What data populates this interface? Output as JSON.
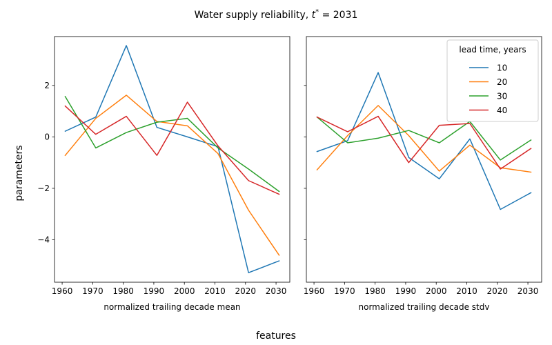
{
  "figure": {
    "title": "Water supply reliability, t* = 2031",
    "title_parts": {
      "prefix": "Water supply reliability, ",
      "var": "t",
      "sup": "*",
      "suffix": " = 2031"
    },
    "supxlabel": "features",
    "supylabel": "parameters"
  },
  "chart_data": [
    {
      "type": "line",
      "xlabel": "normalized trailing decade mean",
      "ylabel": "parameters",
      "x": [
        1961,
        1971,
        1981,
        1991,
        2001,
        2011,
        2021,
        2031
      ],
      "xticks": [
        1960,
        1970,
        1980,
        1990,
        2000,
        2010,
        2020,
        2030
      ],
      "yticks": [
        2,
        0,
        -2,
        -4
      ],
      "xlim": [
        1957.5,
        2034.5
      ],
      "ylim": [
        -5.65,
        3.9
      ],
      "grid": false,
      "series": [
        {
          "name": "10",
          "color": "#1f77b4",
          "values": [
            0.22,
            0.77,
            3.55,
            0.37,
            0.0,
            -0.38,
            -5.28,
            -4.82
          ]
        },
        {
          "name": "20",
          "color": "#ff7f0e",
          "values": [
            -0.72,
            0.72,
            1.62,
            0.6,
            0.43,
            -0.65,
            -2.85,
            -4.6
          ]
        },
        {
          "name": "30",
          "color": "#2ca02c",
          "values": [
            1.57,
            -0.43,
            0.17,
            0.57,
            0.72,
            -0.43,
            -1.25,
            -2.12
          ]
        },
        {
          "name": "40",
          "color": "#d62728",
          "values": [
            1.2,
            0.1,
            0.8,
            -0.72,
            1.35,
            -0.35,
            -1.7,
            -2.23
          ]
        }
      ]
    },
    {
      "type": "line",
      "xlabel": "normalized trailing decade stdv",
      "x": [
        1961,
        1971,
        1981,
        1991,
        2001,
        2011,
        2021,
        2031
      ],
      "xticks": [
        1960,
        1970,
        1980,
        1990,
        2000,
        2010,
        2020,
        2030
      ],
      "xlim": [
        1957.5,
        2034.5
      ],
      "ylim": [
        -5.65,
        3.9
      ],
      "grid": false,
      "legend": {
        "title": "lead time, years",
        "placement": "top-right"
      },
      "series": [
        {
          "name": "10",
          "color": "#1f77b4",
          "values": [
            -0.57,
            -0.15,
            2.5,
            -0.8,
            -1.63,
            -0.08,
            -2.82,
            -2.17
          ]
        },
        {
          "name": "20",
          "color": "#ff7f0e",
          "values": [
            -1.28,
            0.05,
            1.22,
            0.05,
            -1.33,
            -0.32,
            -1.2,
            -1.37
          ]
        },
        {
          "name": "30",
          "color": "#2ca02c",
          "values": [
            0.77,
            -0.23,
            -0.05,
            0.25,
            -0.23,
            0.6,
            -0.9,
            -0.12
          ]
        },
        {
          "name": "40",
          "color": "#d62728",
          "values": [
            0.77,
            0.2,
            0.8,
            -1.0,
            0.45,
            0.52,
            -1.25,
            -0.45
          ]
        }
      ]
    }
  ]
}
